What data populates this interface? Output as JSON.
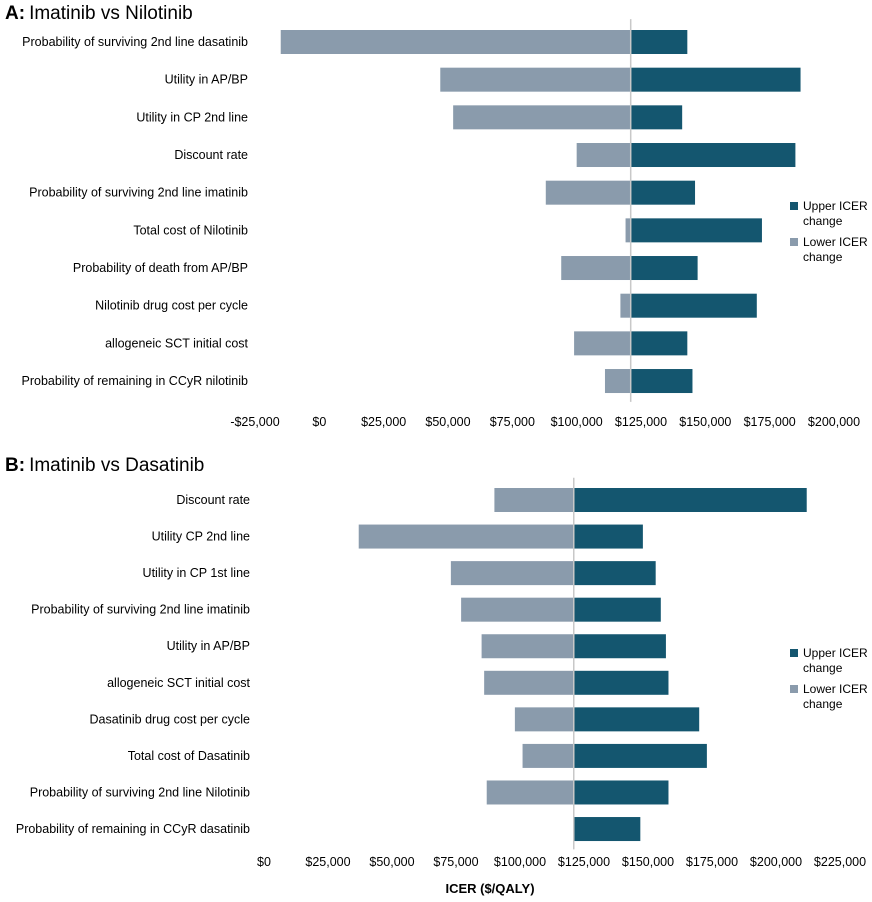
{
  "colors": {
    "upper": "#14566f",
    "lower": "#8a9bac",
    "baseline": "#c8c8c8"
  },
  "chart_data": [
    {
      "type": "bar",
      "orientation": "horizontal",
      "title_prefix": "A:",
      "title_text": "Imatinib vs Nilotinib",
      "baseline": 121000,
      "xlim": [
        -25000,
        200000
      ],
      "xticks": [
        -25000,
        0,
        25000,
        50000,
        75000,
        100000,
        125000,
        150000,
        175000,
        200000
      ],
      "xtick_labels": [
        "-$25,000",
        "$0",
        "$25,000",
        "$50,000",
        "$75,000",
        "$100,000",
        "$125,000",
        "$150,000",
        "$175,000",
        "$200,000"
      ],
      "xlabel": "",
      "legend": [
        "Upper ICER change",
        "Lower ICER change"
      ],
      "legend_position": "right",
      "categories": [
        "Probability of surviving 2nd line dasatinib",
        "Utility in AP/BP",
        "Utility in CP 2nd line",
        "Discount rate",
        "Probability of surviving 2nd line imatinib",
        "Total cost of Nilotinib",
        "Probability of death from AP/BP",
        "Nilotinib drug cost per cycle",
        "allogeneic SCT initial cost",
        "Probability of remaining in CCyR nilotinib"
      ],
      "series": [
        {
          "name": "Lower ICER change",
          "values": [
            -15000,
            47000,
            52000,
            100000,
            88000,
            119000,
            94000,
            117000,
            99000,
            111000
          ]
        },
        {
          "name": "Upper ICER change",
          "values": [
            143000,
            187000,
            141000,
            185000,
            146000,
            172000,
            147000,
            170000,
            143000,
            145000
          ]
        }
      ]
    },
    {
      "type": "bar",
      "orientation": "horizontal",
      "title_prefix": "B:",
      "title_text": "Imatinib vs Dasatinib",
      "baseline": 121000,
      "xlim": [
        0,
        225000
      ],
      "xticks": [
        0,
        25000,
        50000,
        75000,
        100000,
        125000,
        150000,
        175000,
        200000,
        225000
      ],
      "xtick_labels": [
        "$0",
        "$25,000",
        "$50,000",
        "$75,000",
        "$100,000",
        "$125,000",
        "$150,000",
        "$175,000",
        "$200,000",
        "$225,000"
      ],
      "xlabel": "ICER ($/QALY)",
      "legend": [
        "Upper ICER change",
        "Lower ICER change"
      ],
      "legend_position": "right",
      "categories": [
        "Discount rate",
        "Utility CP 2nd line",
        "Utility in CP 1st line",
        "Probability of surviving 2nd line imatinib",
        "Utility in AP/BP",
        "allogeneic SCT initial cost",
        "Dasatinib drug cost per cycle",
        "Total cost of Dasatinib",
        "Probability of surviving 2nd line Nilotinib",
        "Probability of remaining in CCyR dasatinib"
      ],
      "series": [
        {
          "name": "Lower ICER change",
          "values": [
            90000,
            37000,
            73000,
            77000,
            85000,
            86000,
            98000,
            101000,
            87000,
            121000
          ]
        },
        {
          "name": "Upper ICER change",
          "values": [
            212000,
            148000,
            153000,
            155000,
            157000,
            158000,
            170000,
            173000,
            158000,
            147000
          ]
        }
      ]
    }
  ]
}
